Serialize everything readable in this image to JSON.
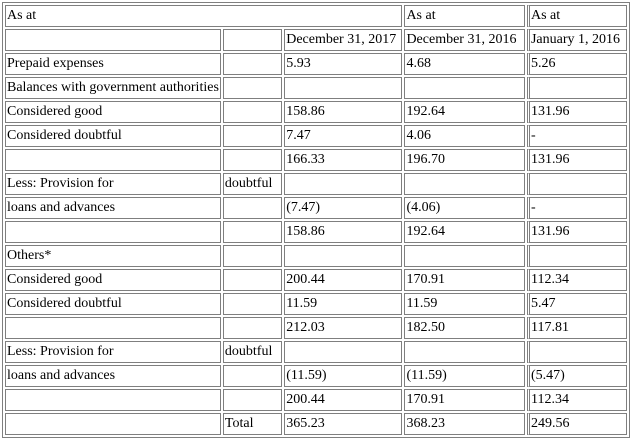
{
  "header": {
    "as_at_left": "As at",
    "as_at_mid": "As at",
    "as_at_right": "As at",
    "col_2017": "December 31, 2017",
    "col_2016": "December 31, 2016",
    "col_jan2016": "January 1, 2016"
  },
  "rows": [
    {
      "label": "Prepaid expenses",
      "sub": "",
      "v2017": "5.93",
      "v2016": "4.68",
      "vjan": "5.26"
    },
    {
      "label": "Balances with government authorities",
      "sub": "",
      "v2017": "",
      "v2016": "",
      "vjan": ""
    },
    {
      "label": "Considered good",
      "sub": "",
      "v2017": "158.86",
      "v2016": "192.64",
      "vjan": "131.96"
    },
    {
      "label": "Considered doubtful",
      "sub": "",
      "v2017": "7.47",
      "v2016": "4.06",
      "vjan": "-"
    },
    {
      "label": "",
      "sub": "",
      "v2017": "166.33",
      "v2016": "196.70",
      "vjan": "131.96"
    },
    {
      "label": "Less: Provision for",
      "sub": "doubtful",
      "v2017": "",
      "v2016": "",
      "vjan": ""
    },
    {
      "label": "loans and advances",
      "sub": "",
      "v2017": "(7.47)",
      "v2016": "(4.06)",
      "vjan": "-"
    },
    {
      "label": "",
      "sub": "",
      "v2017": "158.86",
      "v2016": "192.64",
      "vjan": "131.96"
    },
    {
      "label": "Others*",
      "sub": "",
      "v2017": "",
      "v2016": "",
      "vjan": ""
    },
    {
      "label": "Considered good",
      "sub": "",
      "v2017": "200.44",
      "v2016": "170.91",
      "vjan": "112.34"
    },
    {
      "label": "Considered doubtful",
      "sub": "",
      "v2017": "11.59",
      "v2016": "11.59",
      "vjan": "5.47"
    },
    {
      "label": "",
      "sub": "",
      "v2017": "212.03",
      "v2016": "182.50",
      "vjan": "117.81"
    },
    {
      "label": "Less: Provision for",
      "sub": "doubtful",
      "v2017": "",
      "v2016": "",
      "vjan": ""
    },
    {
      "label": "loans and advances",
      "sub": "",
      "v2017": "(11.59)",
      "v2016": "(11.59)",
      "vjan": "(5.47)"
    },
    {
      "label": "",
      "sub": "",
      "v2017": "200.44",
      "v2016": "170.91",
      "vjan": "112.34"
    },
    {
      "label": "",
      "sub": "Total",
      "v2017": "365.23",
      "v2016": "368.23",
      "vjan": "249.56"
    }
  ]
}
